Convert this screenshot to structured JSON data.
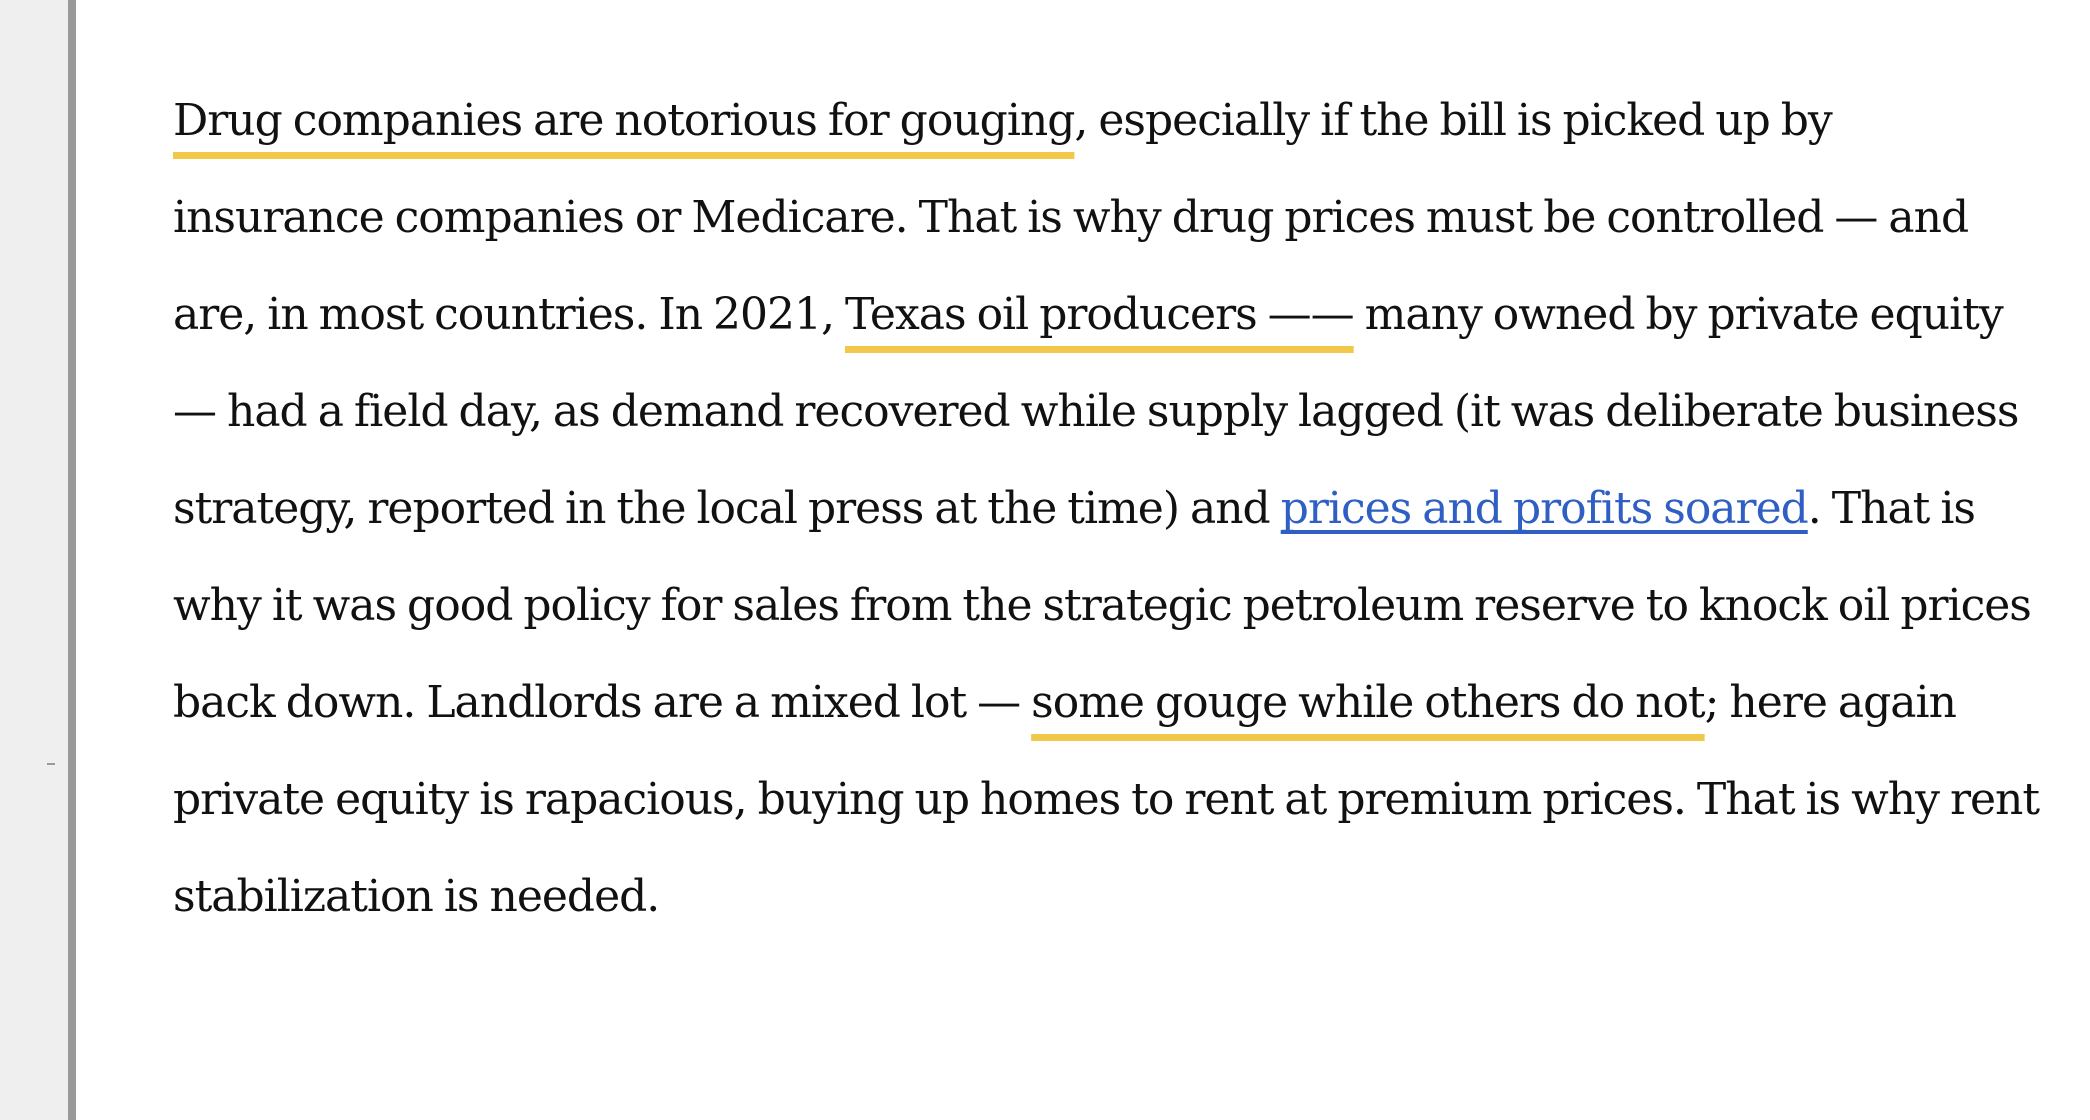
{
  "article": {
    "p1": "Drug companies are notorious for gouging",
    "p2": ", especially if the bill is picked up by insurance companies or Medicare. That is why drug prices must be controlled — and are, in most countries. In 2021, ",
    "p3": "Texas oil producers ——",
    "p4": " many owned by private equity — had a field day, as demand recovered while supply lagged (it was deliberate business strategy, reported in the local press at the time) and ",
    "link": "prices and profits soared",
    "p5": ". That is why it was good policy for sales from the strategic petroleum reserve to knock oil prices back down. Landlords are a mixed lot — ",
    "p6": "some gouge while others do not",
    "p7": "; here again private equity is rapacious, buying up homes to rent at premium prices. That is why rent stabilization is needed."
  },
  "colors": {
    "highlight_underline": "#f2c84b",
    "link": "#2f5fc4",
    "text": "#111111",
    "gutter": "#efefef"
  }
}
